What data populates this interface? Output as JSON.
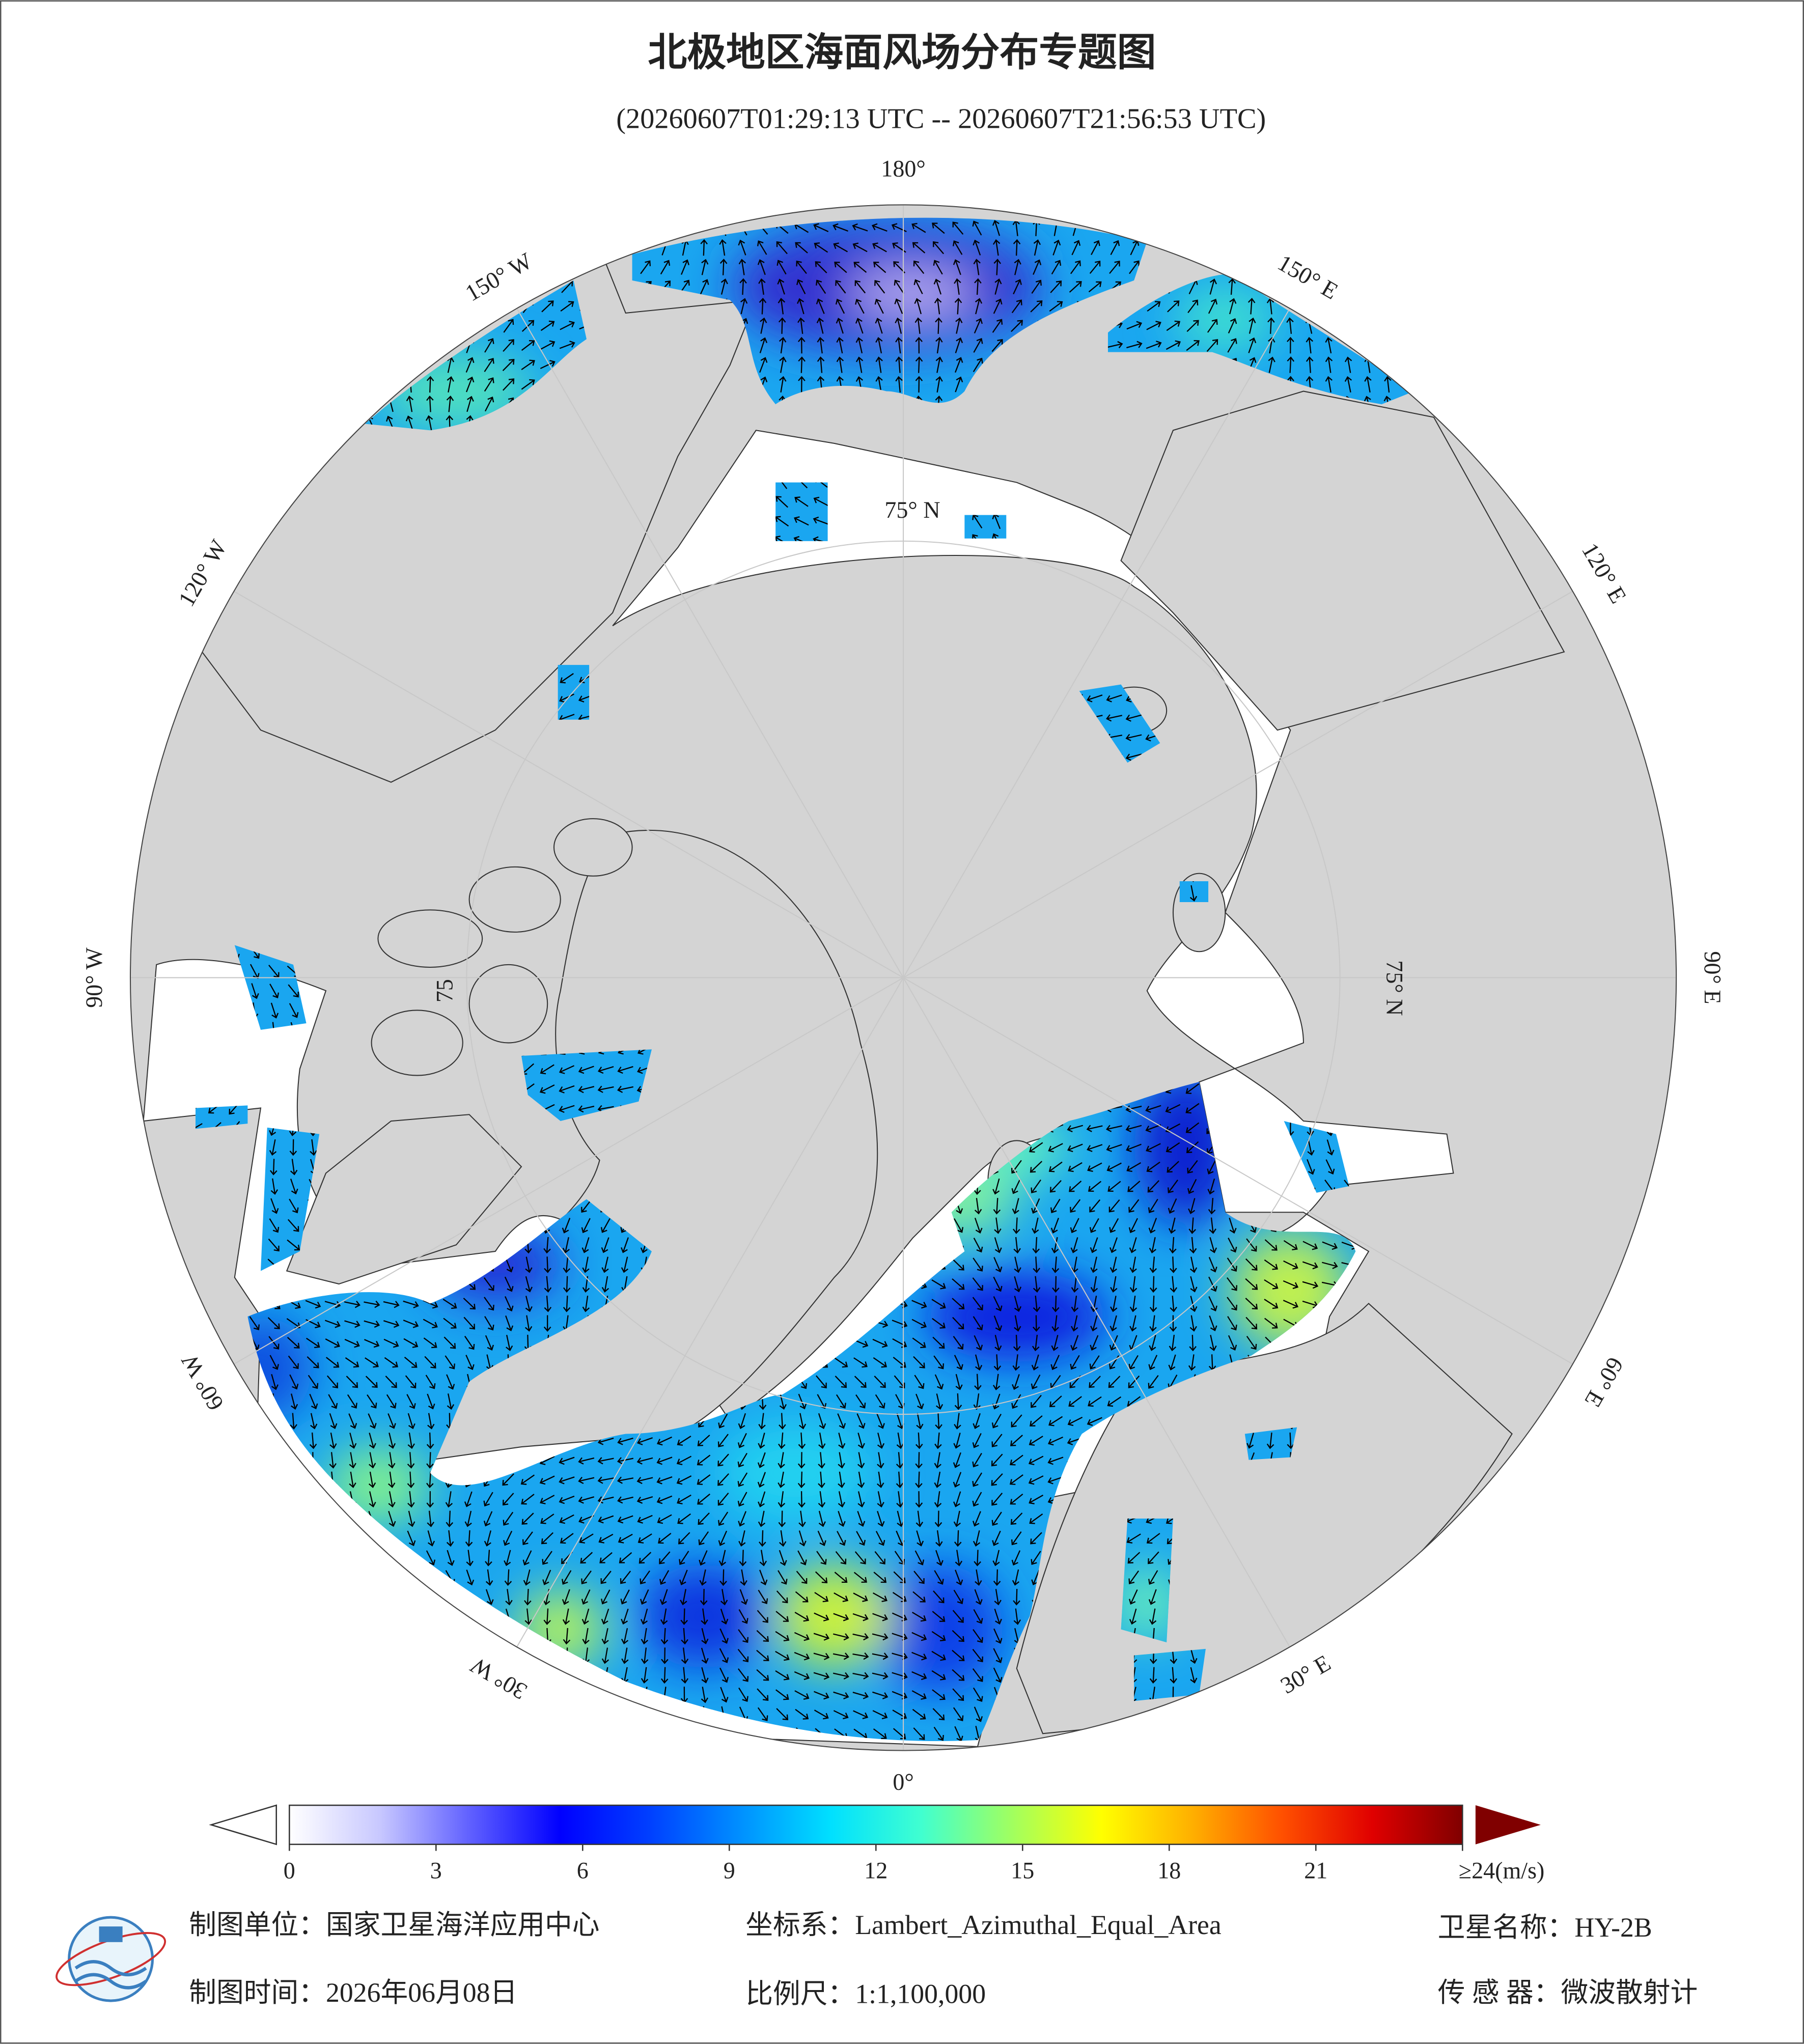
{
  "header": {
    "title": "北极地区海面风场分布专题图",
    "subtitle": "(20260607T01:29:13 UTC -- 20260607T21:56:53 UTC)"
  },
  "map": {
    "longitude_labels": [
      "180°",
      "150° E",
      "120° E",
      "90° E",
      "60° E",
      "30° E",
      "0°",
      "30° W",
      "60° W",
      "90° W",
      "120° W",
      "150° W"
    ],
    "latitude_labels": [
      "75° N",
      "75° N",
      "75"
    ]
  },
  "colorbar": {
    "lim": [
      0,
      24
    ],
    "ticks": [
      0,
      3,
      6,
      9,
      12,
      15,
      18,
      21,
      {
        "value": 24,
        "label": "≥24(m/s)"
      }
    ],
    "colors": [
      "#ffffff",
      "#c8c8ff",
      "#6060ff",
      "#0000ff",
      "#0040ff",
      "#0090ff",
      "#00e0ff",
      "#40ffd0",
      "#a0ff60",
      "#ffff00",
      "#ffb000",
      "#ff5000",
      "#e00000",
      "#800000"
    ]
  },
  "footer": {
    "items": [
      "制图单位：国家卫星海洋应用中心",
      "坐标系：Lambert_Azimuthal_Equal_Area",
      "卫星名称：HY-2B",
      "制图时间：2026年06月08日",
      "比例尺：1:1,100,000",
      "传 感 器：微波散射计"
    ]
  }
}
